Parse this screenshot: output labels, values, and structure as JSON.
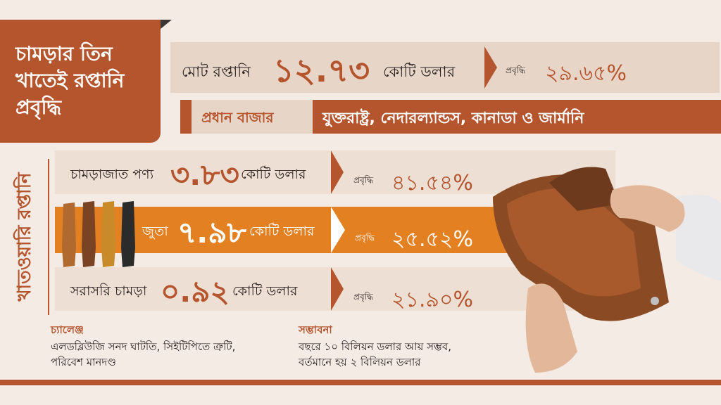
{
  "title": {
    "line1": "চামড়ার তিন",
    "line2": "খাতেই রপ্তানি",
    "line3": "প্রবৃদ্ধি"
  },
  "total": {
    "label": "মোট রপ্তানি",
    "value": "১২.৭৩",
    "unit": "কোটি ডলার",
    "growth_label": "প্রবৃদ্ধি",
    "growth": "২৯.৬৫%"
  },
  "market": {
    "label": "প্রধান বাজার",
    "value": "যুক্তরাষ্ট্র, নেদারল্যান্ডস, কানাডা ও জার্মানি"
  },
  "side_label": "খাতওয়ারি রপ্তানি",
  "rows": [
    {
      "label": "চামড়াজাত পণ্য",
      "value": "৩.৮৩",
      "unit": "কোটি ডলার",
      "growth_label": "প্রবৃদ্ধি",
      "growth": "৪১.৫৪%"
    },
    {
      "label": "জুতা",
      "value": "৭.৯৮",
      "unit": "কোটি ডলার",
      "growth_label": "প্রবৃদ্ধি",
      "growth": "২৫.৫২%"
    },
    {
      "label": "সরাসরি চামড়া",
      "value": "০.৯২",
      "unit": "কোটি ডলার",
      "growth_label": "প্রবৃদ্ধি",
      "growth": "২১.৯০%"
    }
  ],
  "challenge": {
    "heading": "চ্যালেঞ্জ",
    "line1": "এলডব্লিউজি সনদ ঘাটতি, সিইটিপিতে ত্রুটি,",
    "line2": "পরিবেশ মানদণ্ড"
  },
  "prospect": {
    "heading": "সম্ভাবনা",
    "line1": "বছরে ১০ বিলিয়ন ডলার আয় সম্ভব,",
    "line2": "বর্তমানে হয় ২ বিলিয়ন ডলার"
  },
  "colors": {
    "accent": "#b5552e",
    "orange": "#e38122",
    "bg": "#f3ebe4",
    "panel": "#e7d6c8"
  }
}
